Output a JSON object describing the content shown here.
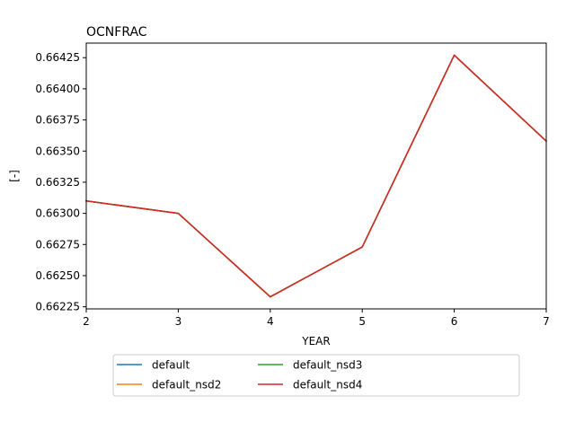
{
  "chart_data": {
    "type": "line",
    "title": "OCNFRAC",
    "xlabel": "YEAR",
    "ylabel": "[-]",
    "xlim": [
      2,
      7
    ],
    "ylim": [
      0.662233,
      0.664367
    ],
    "x": [
      2,
      3,
      4,
      5,
      6,
      7
    ],
    "xticks": [
      2,
      3,
      4,
      5,
      6,
      7
    ],
    "yticks": [
      0.66225,
      0.6625,
      0.66275,
      0.663,
      0.66325,
      0.6635,
      0.66375,
      0.664,
      0.66425
    ],
    "ytick_labels": [
      "0.66225",
      "0.66250",
      "0.66275",
      "0.66300",
      "0.66325",
      "0.66350",
      "0.66375",
      "0.66400",
      "0.66425"
    ],
    "grid": false,
    "legend_position": "bottom-outside, 3 columns",
    "series": [
      {
        "name": "default",
        "color": "#1f77b4",
        "values": [
          0.6631,
          0.663,
          0.66233,
          0.66273,
          0.66427,
          0.66358
        ]
      },
      {
        "name": "default_nsd2",
        "color": "#ff7f0e",
        "values": [
          0.6631,
          0.663,
          0.66233,
          0.66273,
          0.66427,
          0.66358
        ]
      },
      {
        "name": "default_nsd3",
        "color": "#2ca02c",
        "values": [
          0.6631,
          0.663,
          0.66233,
          0.66273,
          0.66427,
          0.66358
        ]
      },
      {
        "name": "default_nsd4",
        "color": "#d62728",
        "values": [
          0.6631,
          0.663,
          0.66233,
          0.66273,
          0.66427,
          0.66358
        ]
      }
    ]
  }
}
